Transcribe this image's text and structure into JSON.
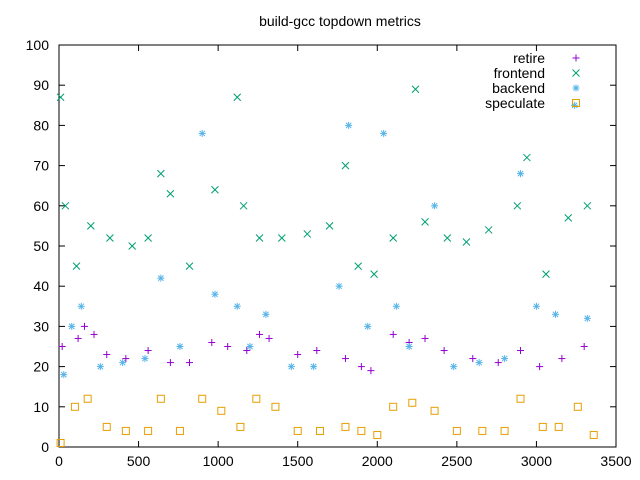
{
  "chart_data": {
    "type": "scatter",
    "title": "build-gcc topdown metrics",
    "xlabel": "",
    "ylabel": "",
    "xlim": [
      0,
      3500
    ],
    "ylim": [
      0,
      100
    ],
    "x_ticks": [
      0,
      500,
      1000,
      1500,
      2000,
      2500,
      3000,
      3500
    ],
    "y_ticks": [
      0,
      10,
      20,
      30,
      40,
      50,
      60,
      70,
      80,
      90,
      100
    ],
    "legend_position": "top-right",
    "grid": false,
    "series": [
      {
        "name": "retire",
        "marker": "plus",
        "color": "#9400d3",
        "points": [
          [
            20,
            25
          ],
          [
            120,
            27
          ],
          [
            160,
            30
          ],
          [
            220,
            28
          ],
          [
            300,
            23
          ],
          [
            420,
            22
          ],
          [
            560,
            24
          ],
          [
            700,
            21
          ],
          [
            820,
            21
          ],
          [
            960,
            26
          ],
          [
            1060,
            25
          ],
          [
            1180,
            24
          ],
          [
            1260,
            28
          ],
          [
            1320,
            27
          ],
          [
            1500,
            23
          ],
          [
            1620,
            24
          ],
          [
            1800,
            22
          ],
          [
            1900,
            20
          ],
          [
            1960,
            19
          ],
          [
            2100,
            28
          ],
          [
            2200,
            26
          ],
          [
            2300,
            27
          ],
          [
            2420,
            24
          ],
          [
            2600,
            22
          ],
          [
            2760,
            21
          ],
          [
            2900,
            24
          ],
          [
            3020,
            20
          ],
          [
            3160,
            22
          ],
          [
            3300,
            25
          ]
        ]
      },
      {
        "name": "frontend",
        "marker": "cross",
        "color": "#009e73",
        "points": [
          [
            10,
            87
          ],
          [
            40,
            60
          ],
          [
            110,
            45
          ],
          [
            200,
            55
          ],
          [
            320,
            52
          ],
          [
            460,
            50
          ],
          [
            560,
            52
          ],
          [
            640,
            68
          ],
          [
            700,
            63
          ],
          [
            820,
            45
          ],
          [
            980,
            64
          ],
          [
            1120,
            87
          ],
          [
            1160,
            60
          ],
          [
            1260,
            52
          ],
          [
            1400,
            52
          ],
          [
            1560,
            53
          ],
          [
            1700,
            55
          ],
          [
            1800,
            70
          ],
          [
            1880,
            45
          ],
          [
            1980,
            43
          ],
          [
            2100,
            52
          ],
          [
            2240,
            89
          ],
          [
            2300,
            56
          ],
          [
            2440,
            52
          ],
          [
            2560,
            51
          ],
          [
            2700,
            54
          ],
          [
            2880,
            60
          ],
          [
            2940,
            72
          ],
          [
            3060,
            43
          ],
          [
            3200,
            57
          ],
          [
            3320,
            60
          ]
        ]
      },
      {
        "name": "backend",
        "marker": "star",
        "color": "#56b4e9",
        "points": [
          [
            30,
            18
          ],
          [
            80,
            30
          ],
          [
            140,
            35
          ],
          [
            260,
            20
          ],
          [
            400,
            21
          ],
          [
            540,
            22
          ],
          [
            640,
            42
          ],
          [
            760,
            25
          ],
          [
            900,
            78
          ],
          [
            980,
            38
          ],
          [
            1120,
            35
          ],
          [
            1200,
            25
          ],
          [
            1300,
            33
          ],
          [
            1460,
            20
          ],
          [
            1600,
            20
          ],
          [
            1760,
            40
          ],
          [
            1820,
            80
          ],
          [
            1940,
            30
          ],
          [
            2040,
            78
          ],
          [
            2120,
            35
          ],
          [
            2200,
            25
          ],
          [
            2360,
            60
          ],
          [
            2480,
            20
          ],
          [
            2640,
            21
          ],
          [
            2800,
            22
          ],
          [
            2900,
            68
          ],
          [
            3000,
            35
          ],
          [
            3120,
            33
          ],
          [
            3240,
            85
          ],
          [
            3320,
            32
          ]
        ]
      },
      {
        "name": "speculate",
        "marker": "square",
        "color": "#e69f00",
        "points": [
          [
            10,
            1
          ],
          [
            100,
            10
          ],
          [
            180,
            12
          ],
          [
            300,
            5
          ],
          [
            420,
            4
          ],
          [
            560,
            4
          ],
          [
            640,
            12
          ],
          [
            760,
            4
          ],
          [
            900,
            12
          ],
          [
            1020,
            9
          ],
          [
            1140,
            5
          ],
          [
            1240,
            12
          ],
          [
            1360,
            10
          ],
          [
            1500,
            4
          ],
          [
            1640,
            4
          ],
          [
            1800,
            5
          ],
          [
            1900,
            4
          ],
          [
            2000,
            3
          ],
          [
            2100,
            10
          ],
          [
            2220,
            11
          ],
          [
            2360,
            9
          ],
          [
            2500,
            4
          ],
          [
            2660,
            4
          ],
          [
            2800,
            4
          ],
          [
            2900,
            12
          ],
          [
            3040,
            5
          ],
          [
            3140,
            5
          ],
          [
            3260,
            10
          ],
          [
            3360,
            3
          ]
        ]
      }
    ]
  }
}
